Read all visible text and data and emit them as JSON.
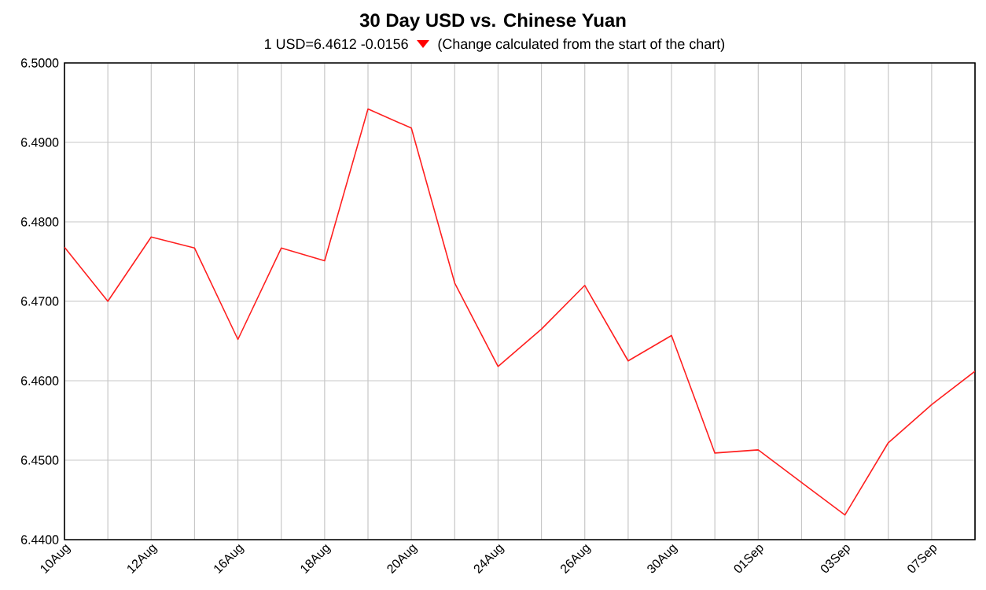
{
  "chart_data": {
    "type": "line",
    "title": "30 Day USD vs. Chinese Yuan",
    "subtitle": "1 USD=6.4612  -0.0156",
    "annotations": [
      "(Change calculated from the start of the chart)"
    ],
    "categories": [
      "10Aug",
      null,
      "12Aug",
      null,
      "16Aug",
      null,
      "18Aug",
      null,
      "20Aug",
      null,
      "24Aug",
      null,
      "26Aug",
      null,
      "30Aug",
      null,
      "01Sep",
      null,
      "03Sep",
      null,
      "07Sep",
      null
    ],
    "series": [
      {
        "color": "#ff2020",
        "values": [
          6.4768,
          6.47,
          6.4781,
          6.4767,
          6.4652,
          6.4767,
          6.4751,
          6.4942,
          6.4918,
          6.4723,
          6.4618,
          6.4665,
          6.472,
          6.4625,
          6.4657,
          6.4509,
          6.4513,
          6.4472,
          6.4431,
          6.4522,
          6.457,
          6.4612
        ]
      }
    ],
    "ylim": [
      6.44,
      6.5
    ],
    "yticks": [
      {
        "value": 6.44,
        "label": "6.4400"
      },
      {
        "value": 6.45,
        "label": "6.4500"
      },
      {
        "value": 6.46,
        "label": "6.4600"
      },
      {
        "value": 6.47,
        "label": "6.4700"
      },
      {
        "value": 6.48,
        "label": "6.4800"
      },
      {
        "value": 6.49,
        "label": "6.4900"
      },
      {
        "value": 6.5,
        "label": "6.5000"
      }
    ],
    "grid": true,
    "marker": "none",
    "line_style": "solid"
  }
}
